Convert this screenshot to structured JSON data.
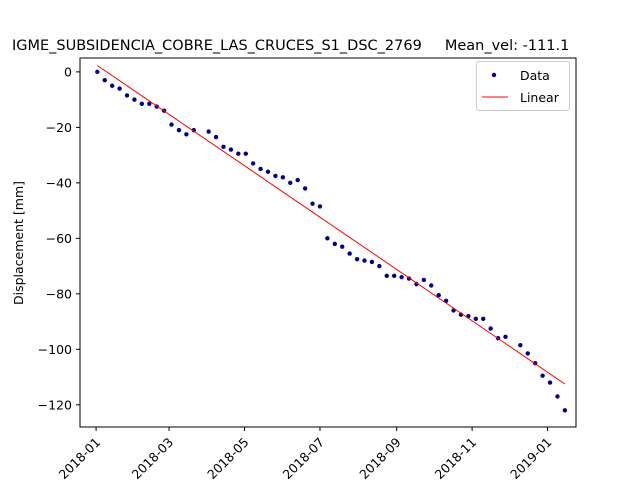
{
  "chart_data": {
    "type": "scatter",
    "title": "IGME_SUBSIDENCIA_COBRE_LAS_CRUCES_S1_DSC_2769     Mean_vel: -111.1",
    "xlabel": "",
    "ylabel": "Displacement [mm]",
    "x_is_date": true,
    "xlim": [
      "2017-12-19",
      "2019-01-24"
    ],
    "ylim": [
      -128,
      5
    ],
    "x_ticks": [
      "2018-01-01",
      "2018-03-01",
      "2018-05-01",
      "2018-07-01",
      "2018-09-01",
      "2018-11-01",
      "2019-01-01"
    ],
    "x_tick_labels": [
      "2018-01",
      "2018-03",
      "2018-05",
      "2018-07",
      "2018-09",
      "2018-11",
      "2019-01"
    ],
    "y_ticks": [
      0,
      -20,
      -40,
      -60,
      -80,
      -100,
      -120
    ],
    "y_tick_labels": [
      "0",
      "−20",
      "−40",
      "−60",
      "−80",
      "−100",
      "−120"
    ],
    "grid": false,
    "legend_position": "top-right",
    "series": [
      {
        "name": "Data",
        "kind": "points",
        "color": "#00008b",
        "points": [
          [
            "2018-01-02",
            0
          ],
          [
            "2018-01-08",
            -3
          ],
          [
            "2018-01-14",
            -5
          ],
          [
            "2018-01-20",
            -6
          ],
          [
            "2018-01-26",
            -8.5
          ],
          [
            "2018-02-01",
            -10
          ],
          [
            "2018-02-07",
            -11.5
          ],
          [
            "2018-02-13",
            -11.5
          ],
          [
            "2018-02-19",
            -12.5
          ],
          [
            "2018-02-25",
            -14
          ],
          [
            "2018-03-03",
            -19
          ],
          [
            "2018-03-09",
            -21
          ],
          [
            "2018-03-15",
            -22.5
          ],
          [
            "2018-03-21",
            -21
          ],
          [
            "2018-04-02",
            -21.5
          ],
          [
            "2018-04-08",
            -23.5
          ],
          [
            "2018-04-14",
            -27
          ],
          [
            "2018-04-20",
            -28
          ],
          [
            "2018-04-26",
            -29.5
          ],
          [
            "2018-05-02",
            -29.5
          ],
          [
            "2018-05-08",
            -33
          ],
          [
            "2018-05-14",
            -35
          ],
          [
            "2018-05-20",
            -36
          ],
          [
            "2018-05-26",
            -37.5
          ],
          [
            "2018-06-01",
            -38
          ],
          [
            "2018-06-07",
            -40
          ],
          [
            "2018-06-13",
            -39
          ],
          [
            "2018-06-19",
            -42
          ],
          [
            "2018-06-25",
            -47.5
          ],
          [
            "2018-07-01",
            -48.5
          ],
          [
            "2018-07-07",
            -60
          ],
          [
            "2018-07-13",
            -62
          ],
          [
            "2018-07-19",
            -63
          ],
          [
            "2018-07-25",
            -65.5
          ],
          [
            "2018-07-31",
            -67.5
          ],
          [
            "2018-08-06",
            -68
          ],
          [
            "2018-08-12",
            -68.5
          ],
          [
            "2018-08-18",
            -70
          ],
          [
            "2018-08-24",
            -73.5
          ],
          [
            "2018-08-30",
            -73.5
          ],
          [
            "2018-09-05",
            -74
          ],
          [
            "2018-09-11",
            -74.5
          ],
          [
            "2018-09-17",
            -76.5
          ],
          [
            "2018-09-23",
            -75
          ],
          [
            "2018-09-29",
            -77
          ],
          [
            "2018-10-05",
            -80.5
          ],
          [
            "2018-10-11",
            -82.5
          ],
          [
            "2018-10-17",
            -86
          ],
          [
            "2018-10-23",
            -87.5
          ],
          [
            "2018-10-29",
            -88
          ],
          [
            "2018-11-04",
            -89
          ],
          [
            "2018-11-10",
            -89
          ],
          [
            "2018-11-16",
            -92.5
          ],
          [
            "2018-11-22",
            -96
          ],
          [
            "2018-11-28",
            -95.5
          ],
          [
            "2018-12-10",
            -98.5
          ],
          [
            "2018-12-16",
            -101.5
          ],
          [
            "2018-12-22",
            -105
          ],
          [
            "2018-12-28",
            -109.5
          ],
          [
            "2019-01-03",
            -112
          ],
          [
            "2019-01-09",
            -117
          ],
          [
            "2019-01-15",
            -122
          ]
        ]
      },
      {
        "name": "Linear",
        "kind": "line",
        "color": "#ff0000",
        "points": [
          [
            "2018-01-02",
            2.3
          ],
          [
            "2019-01-15",
            -112.5
          ]
        ]
      }
    ]
  }
}
